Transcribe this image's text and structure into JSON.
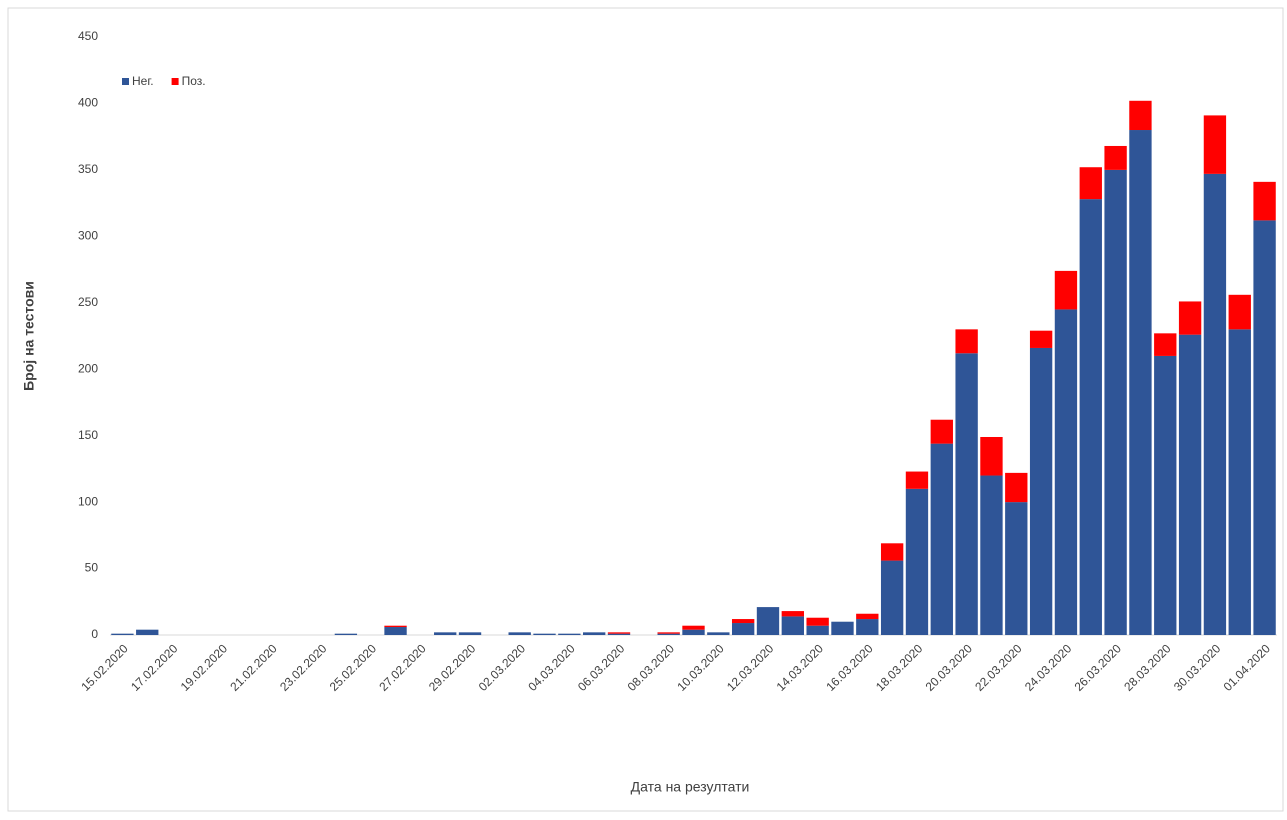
{
  "chart_data": {
    "type": "stacked_bar",
    "x_label": "Дата на резултати",
    "y_label": "Број на тестови",
    "categories": [
      "15.02.2020",
      null,
      "17.02.2020",
      null,
      "19.02.2020",
      null,
      "21.02.2020",
      null,
      "23.02.2020",
      null,
      "25.02.2020",
      null,
      "27.02.2020",
      null,
      "29.02.2020",
      null,
      "02.03.2020",
      null,
      "04.03.2020",
      null,
      "06.03.2020",
      null,
      "08.03.2020",
      null,
      "10.03.2020",
      null,
      "12.03.2020",
      null,
      "14.03.2020",
      null,
      "16.03.2020",
      null,
      "18.03.2020",
      null,
      "20.03.2020",
      null,
      "22.03.2020",
      null,
      "24.03.2020",
      null,
      "26.03.2020",
      null,
      "28.03.2020",
      null,
      "30.03.2020",
      null,
      "01.04.2020"
    ],
    "series": [
      {
        "name": "Нег.",
        "color": "#2f5597",
        "values": [
          1,
          4,
          0,
          0,
          0,
          0,
          0,
          0,
          0,
          1,
          0,
          6,
          0,
          2,
          2,
          0,
          2,
          1,
          1,
          2,
          1,
          0,
          1,
          4,
          2,
          9,
          21,
          14,
          7,
          10,
          12,
          56,
          110,
          144,
          212,
          120,
          100,
          216,
          245,
          328,
          350,
          380,
          210,
          226,
          347,
          230,
          312
        ]
      },
      {
        "name": "Поз.",
        "color": "#ff0000",
        "values": [
          0,
          0,
          0,
          0,
          0,
          0,
          0,
          0,
          0,
          0,
          0,
          1,
          0,
          0,
          0,
          0,
          0,
          0,
          0,
          0,
          1,
          0,
          1,
          3,
          0,
          3,
          0,
          4,
          6,
          0,
          4,
          13,
          13,
          18,
          18,
          29,
          22,
          13,
          29,
          24,
          18,
          22,
          17,
          25,
          44,
          26,
          29
        ]
      }
    ],
    "ylim": [
      0,
      450
    ],
    "yticks": [
      0,
      50,
      100,
      150,
      200,
      250,
      300,
      350,
      400,
      450
    ],
    "legend": "top-left"
  }
}
